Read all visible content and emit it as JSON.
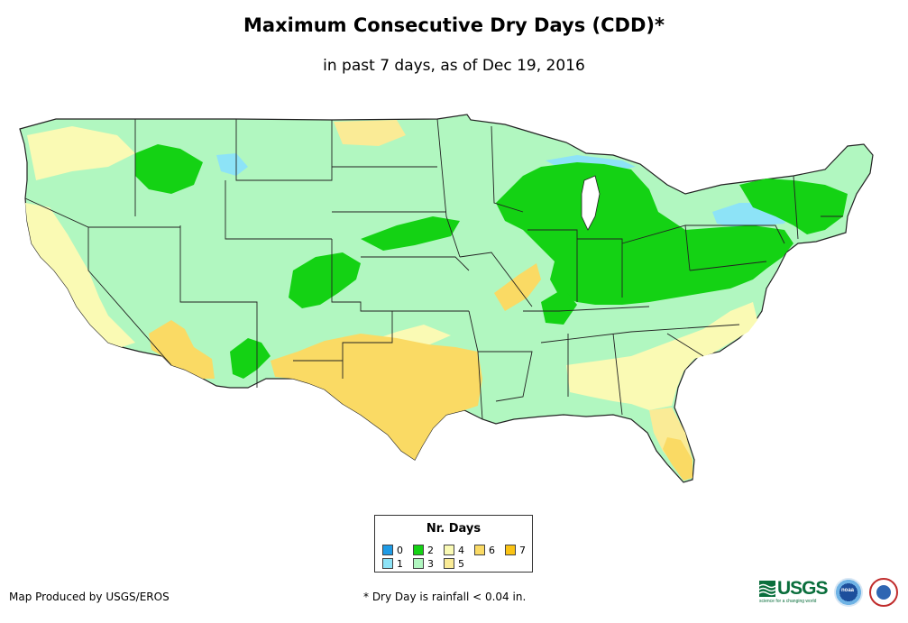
{
  "header": {
    "title": "Maximum Consecutive Dry Days (CDD)*",
    "subtitle": "in past 7 days, as of Dec 19, 2016"
  },
  "legend": {
    "title": "Nr. Days",
    "items": [
      {
        "label": "0",
        "color": "#1e9be6"
      },
      {
        "label": "1",
        "color": "#8de3f7"
      },
      {
        "label": "2",
        "color": "#14d214"
      },
      {
        "label": "3",
        "color": "#b1f7c0"
      },
      {
        "label": "4",
        "color": "#fafab4"
      },
      {
        "label": "5",
        "color": "#faeb96"
      },
      {
        "label": "6",
        "color": "#fada64"
      },
      {
        "label": "7",
        "color": "#fac314"
      }
    ]
  },
  "footer": {
    "credit": "Map Produced by USGS/EROS",
    "note": "* Dry Day is rainfall < 0.04 in."
  },
  "logos": {
    "usgs": "USGS",
    "usgs_tagline": "science for a changing world",
    "noaa": "noaa",
    "nws": "nws-logo-icon"
  },
  "map": {
    "region": "Contiguous United States",
    "colors": {
      "day1": "#8de3f7",
      "day2": "#14d214",
      "day3": "#b1f7c0",
      "day4": "#fafab4",
      "day5": "#faeb96",
      "day6": "#fada64",
      "border": "#222222"
    }
  }
}
